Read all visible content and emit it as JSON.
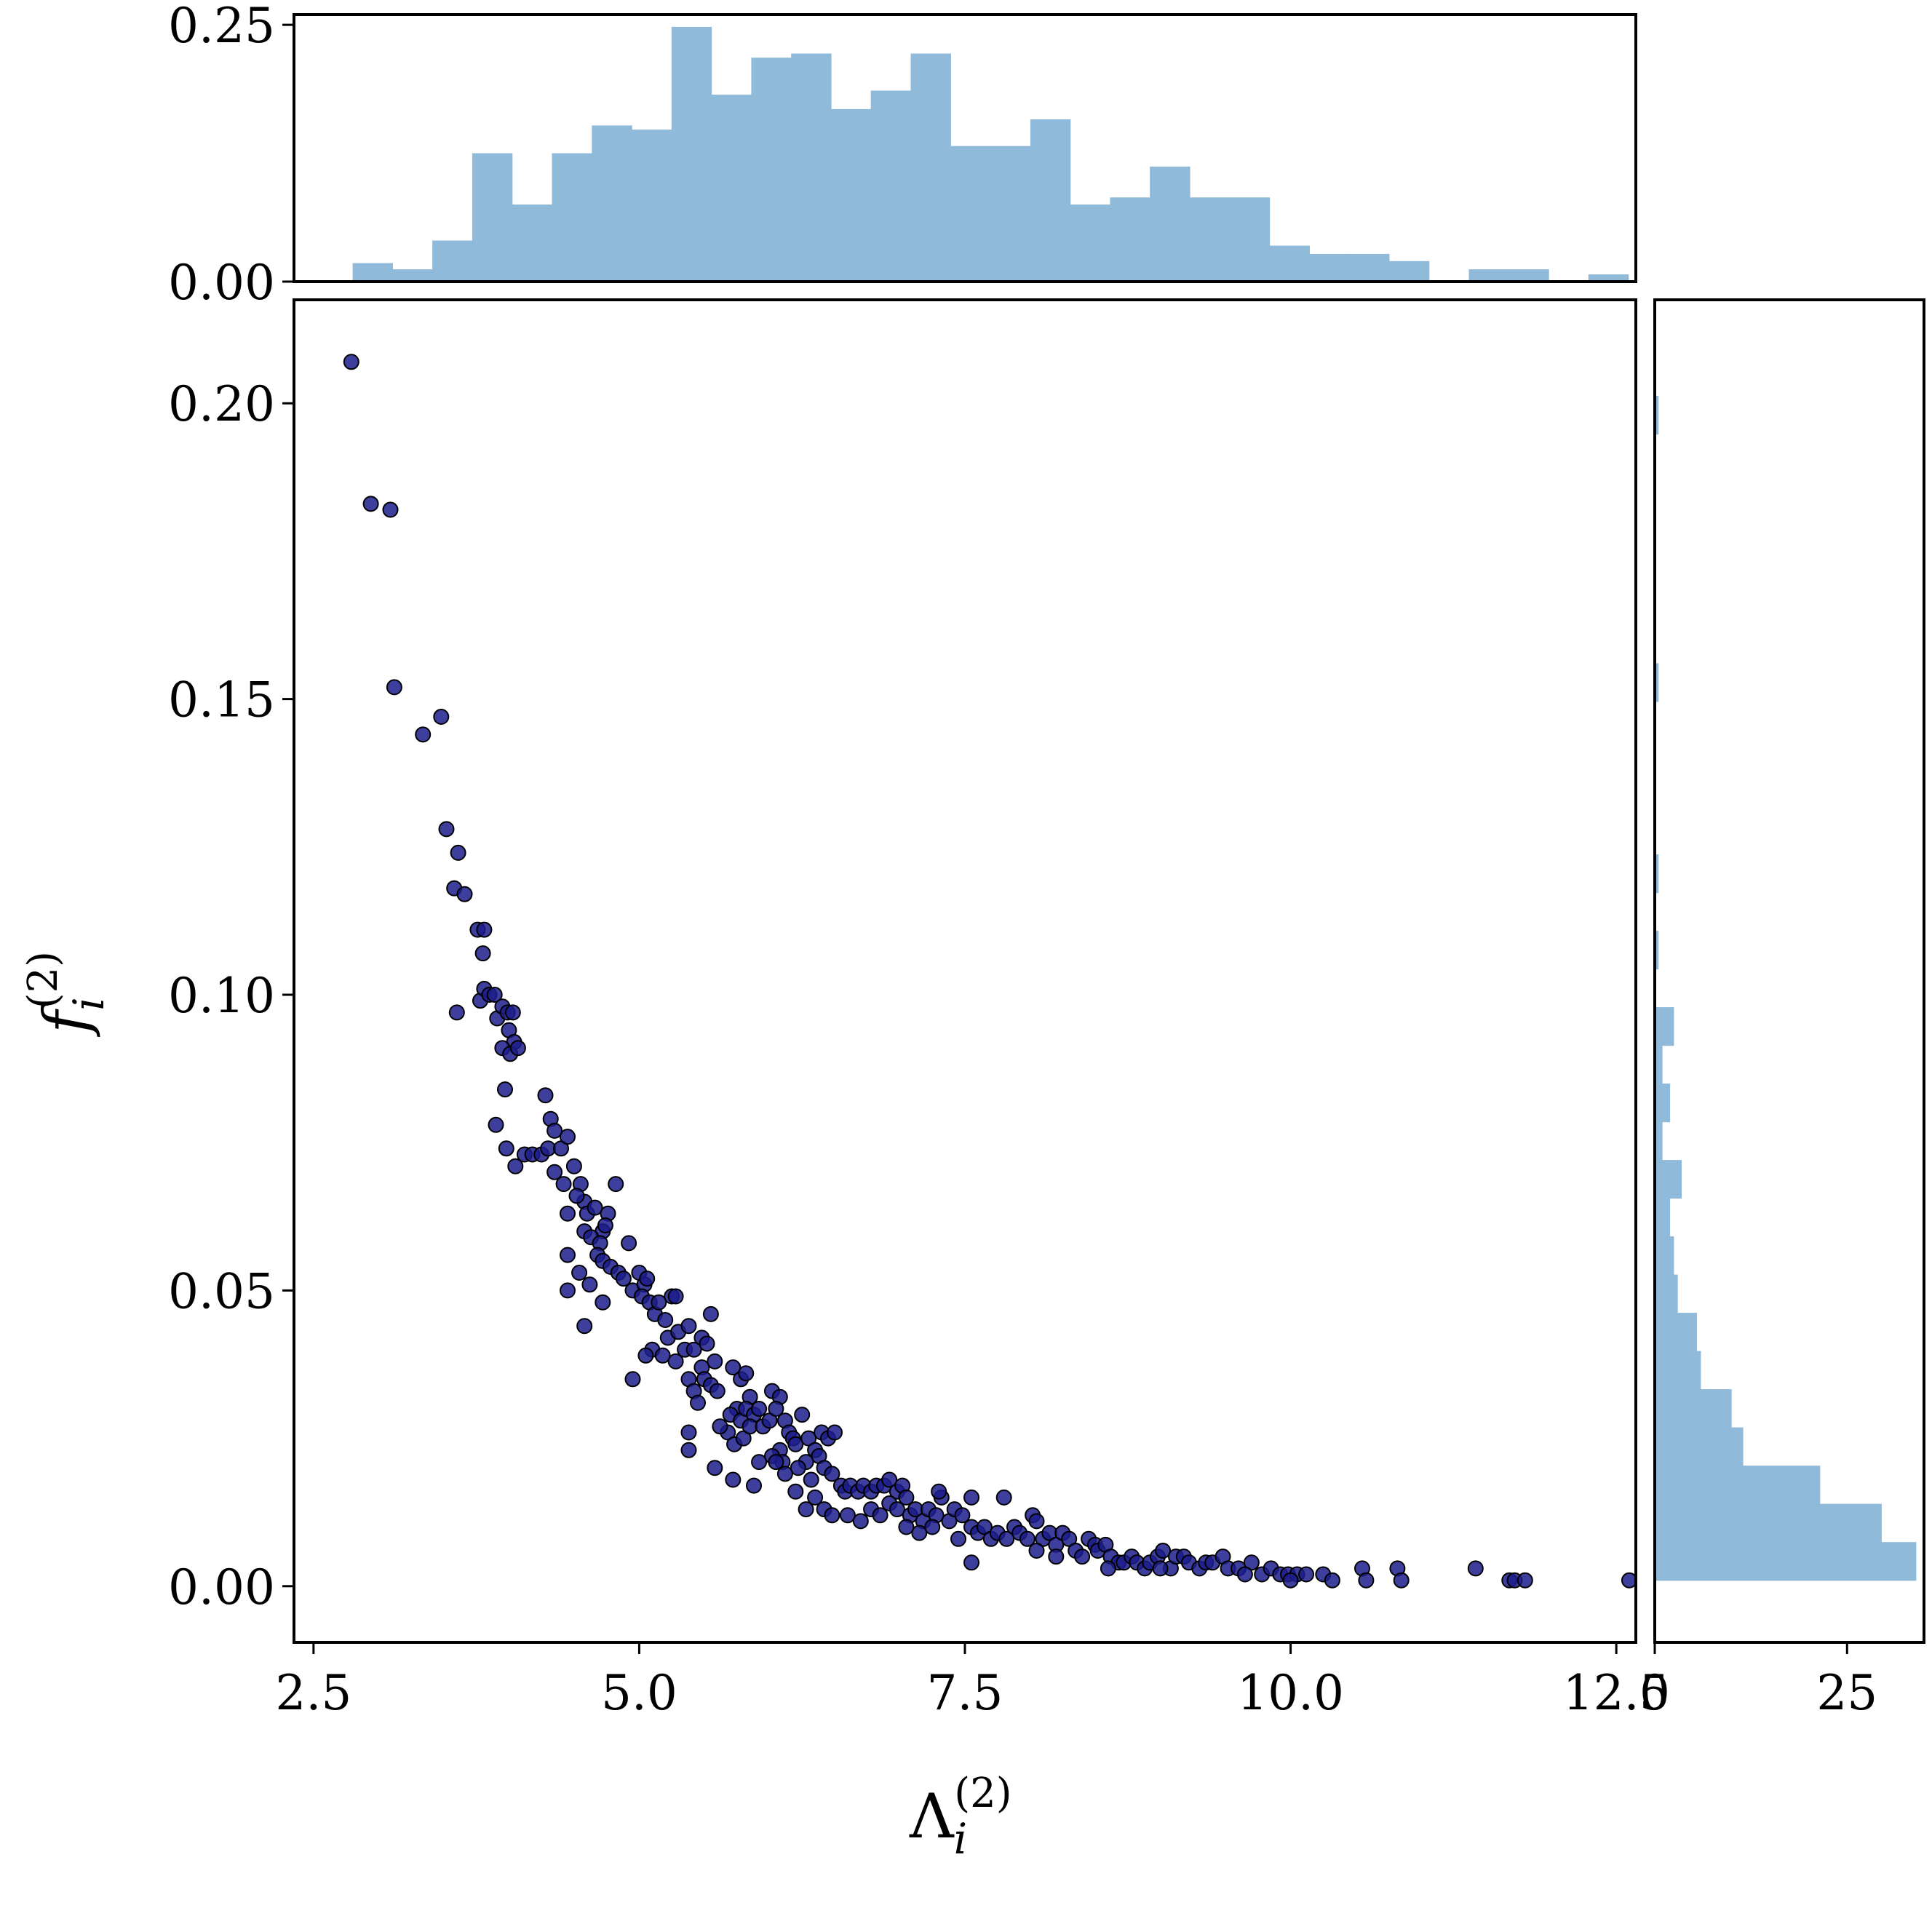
{
  "chart_data": [
    {
      "type": "scatter",
      "panel": "main",
      "xlabel": "Λ",
      "xlabel_sub": "i",
      "xlabel_sup": "(2)",
      "ylabel": "f",
      "ylabel_sub": "i",
      "ylabel_sup": "(2)",
      "xlim": [
        2.35,
        12.65
      ],
      "ylim": [
        -0.0095,
        0.2175
      ],
      "xticks": [
        2.5,
        5.0,
        7.5,
        10.0,
        12.5
      ],
      "xtick_labels": [
        "2.5",
        "5.0",
        "7.5",
        "10.0",
        "12.5"
      ],
      "yticks": [
        0.0,
        0.05,
        0.1,
        0.15,
        0.2
      ],
      "ytick_labels": [
        "0.00",
        "0.05",
        "0.10",
        "0.15",
        "0.20"
      ],
      "marker_color": "#1c1c8c",
      "marker_edge": "#000000",
      "grid": false,
      "points": [
        [
          2.79,
          0.207
        ],
        [
          2.94,
          0.183
        ],
        [
          3.09,
          0.182
        ],
        [
          3.12,
          0.152
        ],
        [
          3.34,
          0.144
        ],
        [
          3.48,
          0.147
        ],
        [
          3.52,
          0.128
        ],
        [
          3.61,
          0.124
        ],
        [
          3.58,
          0.118
        ],
        [
          3.66,
          0.117
        ],
        [
          3.6,
          0.097
        ],
        [
          3.76,
          0.111
        ],
        [
          3.81,
          0.111
        ],
        [
          3.8,
          0.107
        ],
        [
          3.78,
          0.099
        ],
        [
          3.81,
          0.101
        ],
        [
          3.85,
          0.1
        ],
        [
          3.89,
          0.1
        ],
        [
          3.91,
          0.096
        ],
        [
          3.95,
          0.098
        ],
        [
          3.99,
          0.097
        ],
        [
          4.03,
          0.097
        ],
        [
          4.0,
          0.094
        ],
        [
          4.04,
          0.092
        ],
        [
          3.95,
          0.091
        ],
        [
          4.01,
          0.09
        ],
        [
          4.07,
          0.091
        ],
        [
          3.97,
          0.084
        ],
        [
          3.9,
          0.078
        ],
        [
          3.98,
          0.074
        ],
        [
          4.05,
          0.071
        ],
        [
          4.12,
          0.073
        ],
        [
          4.18,
          0.073
        ],
        [
          4.25,
          0.073
        ],
        [
          4.3,
          0.074
        ],
        [
          4.32,
          0.079
        ],
        [
          4.28,
          0.083
        ],
        [
          4.35,
          0.077
        ],
        [
          4.4,
          0.074
        ],
        [
          4.45,
          0.076
        ],
        [
          4.35,
          0.07
        ],
        [
          4.42,
          0.068
        ],
        [
          4.5,
          0.071
        ],
        [
          4.55,
          0.068
        ],
        [
          4.58,
          0.065
        ],
        [
          4.52,
          0.066
        ],
        [
          4.45,
          0.063
        ],
        [
          4.6,
          0.063
        ],
        [
          4.66,
          0.064
        ],
        [
          4.72,
          0.06
        ],
        [
          4.76,
          0.063
        ],
        [
          4.82,
          0.068
        ],
        [
          4.58,
          0.06
        ],
        [
          4.63,
          0.059
        ],
        [
          4.7,
          0.058
        ],
        [
          4.74,
          0.061
        ],
        [
          4.68,
          0.056
        ],
        [
          4.45,
          0.056
        ],
        [
          4.54,
          0.053
        ],
        [
          4.45,
          0.05
        ],
        [
          4.62,
          0.051
        ],
        [
          4.72,
          0.055
        ],
        [
          4.78,
          0.054
        ],
        [
          4.84,
          0.053
        ],
        [
          4.88,
          0.052
        ],
        [
          4.92,
          0.058
        ],
        [
          4.72,
          0.048
        ],
        [
          4.58,
          0.044
        ],
        [
          4.95,
          0.05
        ],
        [
          5.0,
          0.053
        ],
        [
          5.04,
          0.051
        ],
        [
          5.02,
          0.049
        ],
        [
          5.08,
          0.048
        ],
        [
          5.06,
          0.052
        ],
        [
          5.12,
          0.046
        ],
        [
          5.15,
          0.048
        ],
        [
          5.2,
          0.045
        ],
        [
          5.25,
          0.049
        ],
        [
          5.28,
          0.049
        ],
        [
          5.22,
          0.042
        ],
        [
          5.3,
          0.043
        ],
        [
          5.35,
          0.04
        ],
        [
          5.38,
          0.044
        ],
        [
          5.1,
          0.04
        ],
        [
          5.05,
          0.039
        ],
        [
          4.95,
          0.035
        ],
        [
          5.18,
          0.039
        ],
        [
          5.28,
          0.038
        ],
        [
          5.42,
          0.04
        ],
        [
          5.48,
          0.042
        ],
        [
          5.55,
          0.046
        ],
        [
          5.52,
          0.041
        ],
        [
          5.58,
          0.038
        ],
        [
          5.48,
          0.037
        ],
        [
          5.38,
          0.035
        ],
        [
          5.42,
          0.033
        ],
        [
          5.45,
          0.031
        ],
        [
          5.5,
          0.035
        ],
        [
          5.55,
          0.034
        ],
        [
          5.6,
          0.033
        ],
        [
          5.38,
          0.026
        ],
        [
          5.38,
          0.023
        ],
        [
          5.72,
          0.037
        ],
        [
          5.78,
          0.035
        ],
        [
          5.82,
          0.036
        ],
        [
          5.85,
          0.032
        ],
        [
          5.75,
          0.03
        ],
        [
          5.7,
          0.029
        ],
        [
          5.78,
          0.028
        ],
        [
          5.82,
          0.03
        ],
        [
          5.88,
          0.029
        ],
        [
          5.92,
          0.03
        ],
        [
          5.68,
          0.026
        ],
        [
          5.62,
          0.027
        ],
        [
          5.73,
          0.024
        ],
        [
          5.8,
          0.025
        ],
        [
          5.85,
          0.027
        ],
        [
          5.95,
          0.027
        ],
        [
          6.0,
          0.028
        ],
        [
          6.02,
          0.033
        ],
        [
          6.08,
          0.032
        ],
        [
          6.05,
          0.03
        ],
        [
          6.12,
          0.028
        ],
        [
          6.15,
          0.026
        ],
        [
          6.18,
          0.025
        ],
        [
          6.08,
          0.023
        ],
        [
          6.02,
          0.022
        ],
        [
          5.92,
          0.021
        ],
        [
          6.1,
          0.021
        ],
        [
          6.2,
          0.024
        ],
        [
          6.25,
          0.029
        ],
        [
          6.3,
          0.025
        ],
        [
          6.35,
          0.023
        ],
        [
          6.4,
          0.026
        ],
        [
          6.38,
          0.022
        ],
        [
          6.45,
          0.025
        ],
        [
          6.5,
          0.026
        ],
        [
          6.28,
          0.021
        ],
        [
          6.22,
          0.02
        ],
        [
          6.12,
          0.019
        ],
        [
          6.32,
          0.018
        ],
        [
          6.42,
          0.02
        ],
        [
          6.48,
          0.019
        ],
        [
          6.55,
          0.017
        ],
        [
          6.58,
          0.016
        ],
        [
          6.62,
          0.017
        ],
        [
          6.68,
          0.016
        ],
        [
          6.72,
          0.017
        ],
        [
          6.78,
          0.016
        ],
        [
          6.82,
          0.017
        ],
        [
          6.88,
          0.017
        ],
        [
          6.92,
          0.018
        ],
        [
          6.98,
          0.016
        ],
        [
          7.02,
          0.017
        ],
        [
          7.05,
          0.015
        ],
        [
          6.35,
          0.015
        ],
        [
          6.28,
          0.013
        ],
        [
          6.42,
          0.013
        ],
        [
          6.48,
          0.012
        ],
        [
          6.6,
          0.012
        ],
        [
          6.7,
          0.011
        ],
        [
          6.78,
          0.013
        ],
        [
          6.85,
          0.012
        ],
        [
          6.92,
          0.014
        ],
        [
          6.98,
          0.013
        ],
        [
          7.08,
          0.012
        ],
        [
          7.12,
          0.013
        ],
        [
          7.18,
          0.011
        ],
        [
          7.22,
          0.013
        ],
        [
          7.28,
          0.012
        ],
        [
          7.32,
          0.015
        ],
        [
          7.38,
          0.011
        ],
        [
          7.42,
          0.013
        ],
        [
          7.48,
          0.012
        ],
        [
          7.55,
          0.01
        ],
        [
          7.6,
          0.009
        ],
        [
          7.15,
          0.009
        ],
        [
          7.05,
          0.01
        ],
        [
          7.25,
          0.01
        ],
        [
          5.58,
          0.02
        ],
        [
          5.72,
          0.018
        ],
        [
          5.88,
          0.017
        ],
        [
          6.05,
          0.021
        ],
        [
          6.2,
          0.016
        ],
        [
          7.3,
          0.016
        ],
        [
          7.55,
          0.015
        ],
        [
          7.8,
          0.015
        ],
        [
          7.45,
          0.008
        ],
        [
          7.65,
          0.01
        ],
        [
          7.7,
          0.008
        ],
        [
          7.75,
          0.009
        ],
        [
          7.82,
          0.008
        ],
        [
          7.88,
          0.01
        ],
        [
          7.92,
          0.009
        ],
        [
          7.98,
          0.008
        ],
        [
          8.02,
          0.012
        ],
        [
          8.05,
          0.011
        ],
        [
          8.1,
          0.008
        ],
        [
          8.15,
          0.009
        ],
        [
          8.2,
          0.007
        ],
        [
          8.25,
          0.009
        ],
        [
          8.3,
          0.008
        ],
        [
          8.35,
          0.006
        ],
        [
          8.4,
          0.005
        ],
        [
          8.45,
          0.008
        ],
        [
          8.5,
          0.007
        ],
        [
          8.52,
          0.006
        ],
        [
          8.58,
          0.007
        ],
        [
          8.62,
          0.005
        ],
        [
          8.68,
          0.004
        ],
        [
          8.72,
          0.004
        ],
        [
          8.78,
          0.005
        ],
        [
          8.82,
          0.004
        ],
        [
          8.88,
          0.003
        ],
        [
          8.92,
          0.004
        ],
        [
          8.98,
          0.005
        ],
        [
          9.02,
          0.006
        ],
        [
          9.08,
          0.003
        ],
        [
          9.12,
          0.005
        ],
        [
          9.18,
          0.005
        ],
        [
          9.22,
          0.004
        ],
        [
          9.3,
          0.003
        ],
        [
          9.35,
          0.004
        ],
        [
          9.4,
          0.004
        ],
        [
          9.48,
          0.005
        ],
        [
          9.52,
          0.003
        ],
        [
          9.6,
          0.003
        ],
        [
          9.7,
          0.004
        ],
        [
          9.78,
          0.002
        ],
        [
          9.85,
          0.003
        ],
        [
          9.92,
          0.002
        ],
        [
          9.98,
          0.002
        ],
        [
          10.05,
          0.002
        ],
        [
          10.12,
          0.002
        ],
        [
          10.25,
          0.002
        ],
        [
          10.32,
          0.001
        ],
        [
          10.55,
          0.003
        ],
        [
          10.58,
          0.001
        ],
        [
          10.82,
          0.003
        ],
        [
          10.85,
          0.001
        ],
        [
          11.42,
          0.003
        ],
        [
          11.68,
          0.001
        ],
        [
          11.72,
          0.001
        ],
        [
          11.8,
          0.001
        ],
        [
          12.6,
          0.001
        ],
        [
          7.55,
          0.004
        ],
        [
          8.05,
          0.006
        ],
        [
          8.2,
          0.005
        ],
        [
          8.6,
          0.003
        ],
        [
          9.0,
          0.003
        ],
        [
          9.65,
          0.002
        ],
        [
          10.0,
          0.001
        ]
      ]
    },
    {
      "type": "bar",
      "panel": "top-histogram",
      "orientation": "vertical",
      "xlim": [
        2.35,
        12.65
      ],
      "ylim": [
        0.0,
        0.26
      ],
      "yticks": [
        0.0,
        0.25
      ],
      "ytick_labels": [
        "0.00",
        "0.25"
      ],
      "bar_color": "#8fbad9",
      "bin_start": 2.8,
      "bin_width": 0.306,
      "values": [
        0.018,
        0.012,
        0.04,
        0.125,
        0.075,
        0.125,
        0.152,
        0.148,
        0.248,
        0.182,
        0.218,
        0.222,
        0.168,
        0.186,
        0.222,
        0.132,
        0.132,
        0.158,
        0.075,
        0.082,
        0.112,
        0.082,
        0.082,
        0.035,
        0.027,
        0.027,
        0.02,
        0.0,
        0.012,
        0.012,
        0.0,
        0.007
      ]
    },
    {
      "type": "bar",
      "panel": "right-histogram",
      "orientation": "horizontal",
      "xlim": [
        0,
        35
      ],
      "xticks": [
        0,
        25
      ],
      "xtick_labels": [
        "0",
        "25"
      ],
      "ylim": [
        -0.0095,
        0.2175
      ],
      "bar_color": "#8fbad9",
      "bin_start": 0.001,
      "bin_width": 0.00646,
      "values": [
        34.0,
        29.5,
        21.5,
        11.5,
        10.0,
        6.0,
        5.5,
        3.0,
        2.5,
        2.0,
        3.5,
        1.0,
        2.0,
        1.0,
        2.5,
        0.0,
        0.5,
        0.0,
        0.5,
        0.0,
        0.0,
        0.0,
        0.0,
        0.5,
        0.0,
        0.0,
        0.0,
        0.0,
        0.0,
        0.0,
        0.5
      ]
    }
  ]
}
